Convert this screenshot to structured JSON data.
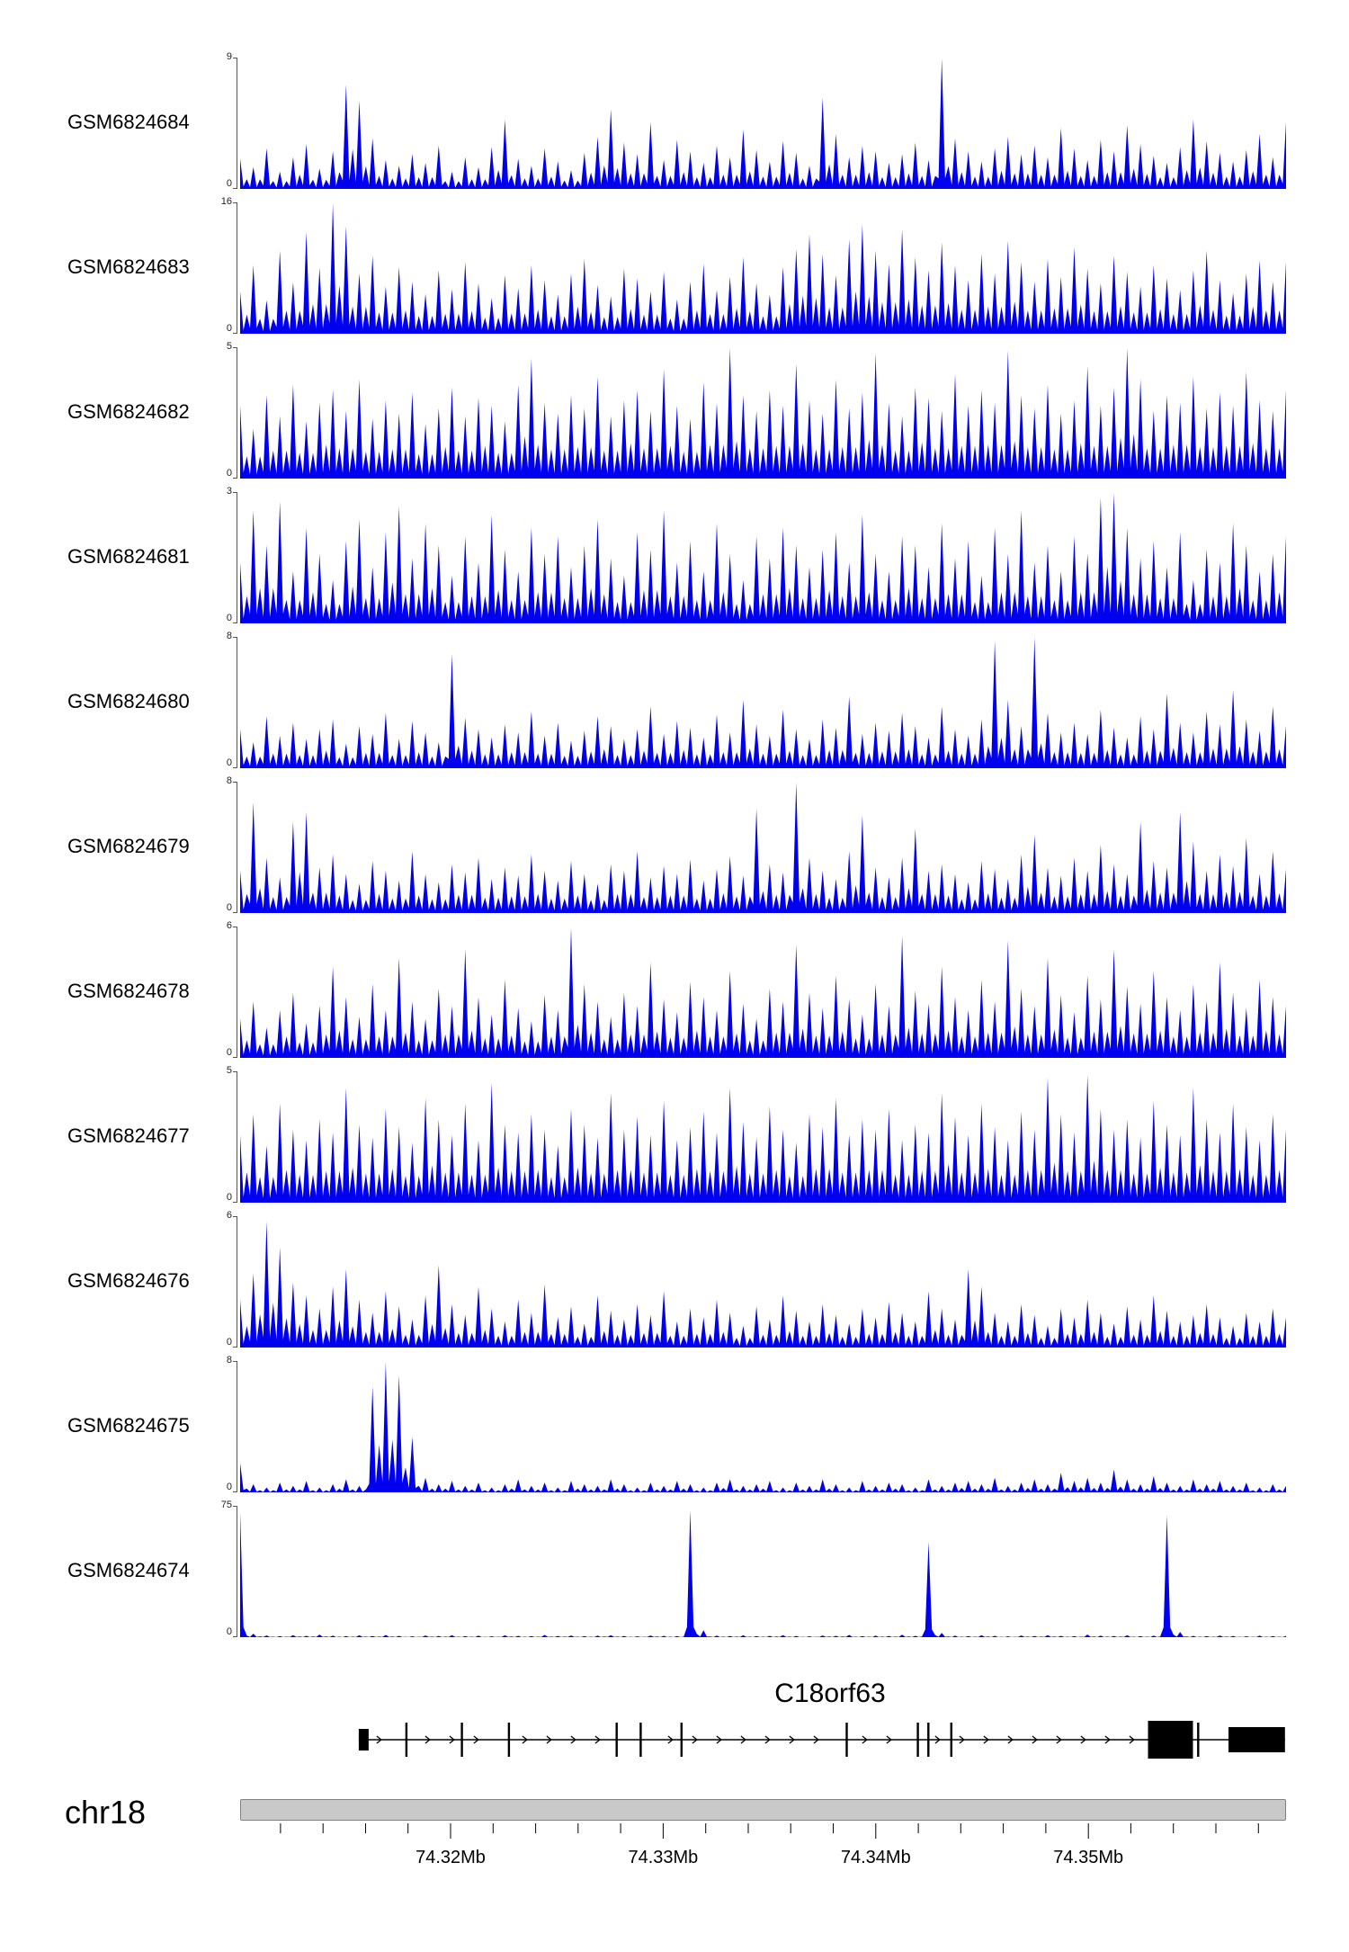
{
  "figure": {
    "background": "#ffffff",
    "signal_color": "#0000EE",
    "gene_color": "#000000",
    "ideogram_fill": "#c9c9c9",
    "ideogram_border": "#808080",
    "zero_label": "0"
  },
  "chart_data": {
    "type": "area",
    "title": "",
    "xlabel": "",
    "ylabel": "",
    "tracks": [
      {
        "name": "GSM6824684",
        "ymax": 9,
        "values": [
          2.1,
          1.5,
          2.8,
          1.2,
          2.2,
          3.1,
          1.4,
          2.6,
          7.2,
          6.1,
          3.5,
          2.0,
          1.6,
          2.4,
          1.8,
          3.0,
          1.2,
          2.2,
          1.5,
          2.9,
          4.8,
          2.1,
          1.6,
          2.8,
          1.9,
          1.3,
          2.5,
          3.6,
          5.5,
          3.2,
          2.4,
          4.6,
          2.0,
          3.4,
          2.6,
          1.8,
          3.0,
          2.2,
          4.1,
          2.7,
          1.9,
          3.3,
          2.5,
          1.6,
          6.3,
          3.8,
          2.2,
          3.0,
          2.6,
          1.8,
          2.4,
          3.2,
          2.0,
          9.0,
          3.5,
          2.6,
          1.9,
          2.8,
          3.6,
          2.4,
          3.0,
          2.2,
          4.2,
          2.8,
          2.0,
          3.4,
          2.6,
          4.4,
          3.1,
          2.3,
          1.8,
          2.9,
          4.8,
          3.3,
          2.5,
          1.9,
          2.7,
          3.8,
          2.2,
          4.6
        ]
      },
      {
        "name": "GSM6824683",
        "ymax": 16,
        "values": [
          5.2,
          8.4,
          4.1,
          10.2,
          6.3,
          12.5,
          8.1,
          16.0,
          13.2,
          7.4,
          9.6,
          5.8,
          8.2,
          6.4,
          4.9,
          7.8,
          5.5,
          8.8,
          6.2,
          4.4,
          7.2,
          5.6,
          8.4,
          6.6,
          4.8,
          7.4,
          9.2,
          6.0,
          4.6,
          8.0,
          6.8,
          5.2,
          7.6,
          4.2,
          6.4,
          8.6,
          5.4,
          7.0,
          9.4,
          6.2,
          4.8,
          8.2,
          10.4,
          12.2,
          9.8,
          7.2,
          11.6,
          13.4,
          10.2,
          8.6,
          12.8,
          9.4,
          7.8,
          11.2,
          8.4,
          6.6,
          9.8,
          7.4,
          11.4,
          8.8,
          6.4,
          9.2,
          7.0,
          10.6,
          8.0,
          6.2,
          9.6,
          7.6,
          5.8,
          8.4,
          6.8,
          5.4,
          7.8,
          10.2,
          6.6,
          5.0,
          7.4,
          9.0,
          6.4,
          8.8
        ]
      },
      {
        "name": "GSM6824682",
        "ymax": 5,
        "values": [
          2.8,
          1.9,
          3.2,
          2.4,
          3.6,
          2.2,
          2.9,
          3.4,
          2.6,
          3.8,
          2.3,
          3.0,
          2.5,
          3.3,
          2.1,
          2.7,
          3.5,
          2.4,
          3.1,
          2.8,
          2.2,
          3.6,
          4.6,
          2.9,
          2.5,
          3.2,
          2.7,
          3.9,
          2.4,
          3.0,
          3.4,
          2.6,
          4.2,
          2.8,
          2.3,
          3.7,
          2.9,
          5.0,
          3.2,
          2.6,
          3.4,
          2.8,
          4.4,
          3.0,
          2.5,
          3.8,
          2.7,
          3.3,
          4.8,
          2.9,
          2.4,
          3.5,
          3.1,
          2.6,
          4.0,
          2.8,
          3.4,
          2.9,
          4.9,
          3.2,
          2.7,
          3.6,
          2.5,
          3.0,
          4.3,
          2.8,
          3.5,
          5.0,
          3.8,
          2.6,
          3.2,
          2.9,
          3.9,
          2.7,
          3.3,
          2.8,
          4.1,
          3.0,
          2.6,
          3.4
        ]
      },
      {
        "name": "GSM6824681",
        "ymax": 3,
        "values": [
          1.4,
          2.6,
          1.8,
          2.8,
          1.2,
          2.2,
          1.6,
          1.0,
          1.9,
          2.4,
          1.3,
          2.1,
          2.7,
          1.5,
          2.3,
          1.8,
          1.1,
          2.0,
          1.4,
          2.5,
          1.7,
          1.2,
          2.2,
          1.6,
          2.0,
          1.3,
          1.8,
          2.4,
          1.5,
          1.1,
          2.1,
          1.7,
          2.6,
          1.4,
          1.9,
          1.2,
          2.3,
          1.6,
          1.0,
          2.0,
          1.5,
          2.2,
          1.8,
          1.3,
          1.7,
          2.1,
          1.4,
          2.5,
          1.6,
          1.2,
          2.0,
          1.8,
          1.3,
          2.3,
          1.5,
          1.9,
          1.1,
          2.2,
          1.6,
          2.6,
          1.4,
          1.8,
          1.2,
          2.0,
          1.6,
          2.9,
          3.0,
          2.2,
          1.5,
          1.9,
          1.3,
          2.1,
          1.0,
          1.7,
          1.4,
          2.3,
          1.8,
          1.2,
          1.6,
          2.0
        ]
      },
      {
        "name": "GSM6824680",
        "ymax": 8,
        "values": [
          2.4,
          1.6,
          3.2,
          2.0,
          2.8,
          1.8,
          2.4,
          3.0,
          1.5,
          2.6,
          2.1,
          3.4,
          1.8,
          2.9,
          2.2,
          1.6,
          7.0,
          3.1,
          2.4,
          1.9,
          2.7,
          2.2,
          3.5,
          2.0,
          2.8,
          1.7,
          2.3,
          3.2,
          2.6,
          1.8,
          2.4,
          3.8,
          2.1,
          2.9,
          2.5,
          1.9,
          3.3,
          2.2,
          4.2,
          2.7,
          2.0,
          3.6,
          2.4,
          1.8,
          3.0,
          2.5,
          4.4,
          2.1,
          2.8,
          2.3,
          3.4,
          2.6,
          1.9,
          3.8,
          2.4,
          2.0,
          3.0,
          7.8,
          4.2,
          2.6,
          8.0,
          3.4,
          2.2,
          2.8,
          2.1,
          3.6,
          2.5,
          1.9,
          3.2,
          2.4,
          4.6,
          2.8,
          2.2,
          3.5,
          2.7,
          4.8,
          3.0,
          2.3,
          3.8,
          2.6
        ]
      },
      {
        "name": "GSM6824679",
        "ymax": 8,
        "values": [
          2.6,
          6.8,
          3.4,
          2.2,
          5.6,
          6.2,
          2.8,
          3.6,
          2.4,
          1.8,
          3.2,
          2.6,
          2.0,
          3.8,
          2.4,
          1.9,
          3.0,
          2.5,
          3.4,
          2.1,
          2.8,
          2.3,
          3.6,
          2.6,
          2.0,
          3.2,
          2.4,
          1.8,
          3.0,
          2.6,
          3.8,
          2.2,
          2.9,
          2.4,
          3.3,
          2.0,
          2.7,
          3.5,
          2.3,
          6.4,
          3.0,
          2.5,
          8.0,
          3.4,
          2.6,
          2.1,
          3.8,
          6.0,
          2.8,
          2.2,
          3.4,
          5.2,
          2.6,
          3.0,
          2.4,
          1.9,
          3.2,
          2.7,
          2.1,
          3.6,
          4.8,
          2.8,
          2.3,
          3.4,
          2.6,
          4.2,
          3.0,
          2.4,
          5.6,
          3.2,
          2.8,
          6.2,
          4.4,
          2.6,
          3.6,
          2.9,
          4.6,
          2.4,
          3.8,
          2.7
        ]
      },
      {
        "name": "GSM6824678",
        "ymax": 6,
        "values": [
          1.8,
          2.6,
          1.4,
          2.2,
          3.0,
          1.6,
          2.4,
          4.2,
          2.8,
          1.9,
          3.4,
          2.2,
          4.6,
          2.6,
          1.8,
          3.2,
          2.4,
          5.0,
          2.8,
          2.0,
          3.6,
          2.3,
          1.7,
          2.9,
          2.2,
          6.0,
          3.4,
          2.6,
          1.9,
          3.0,
          2.4,
          4.4,
          2.7,
          2.1,
          3.5,
          2.8,
          2.2,
          4.0,
          2.5,
          1.8,
          3.2,
          2.6,
          5.2,
          3.0,
          2.3,
          3.8,
          2.7,
          2.0,
          3.4,
          2.4,
          5.6,
          3.1,
          2.5,
          4.2,
          2.8,
          2.2,
          3.6,
          2.6,
          5.4,
          3.2,
          2.4,
          4.6,
          2.9,
          2.1,
          3.8,
          2.7,
          5.0,
          3.3,
          2.5,
          4.0,
          2.8,
          2.2,
          3.4,
          2.6,
          4.4,
          3.0,
          2.3,
          3.6,
          2.8,
          2.4
        ]
      },
      {
        "name": "GSM6824677",
        "ymax": 5,
        "values": [
          2.6,
          3.4,
          2.2,
          3.8,
          2.8,
          2.4,
          3.2,
          2.7,
          4.4,
          3.0,
          2.5,
          3.6,
          2.9,
          2.3,
          4.0,
          3.2,
          2.6,
          3.8,
          2.4,
          4.6,
          3.0,
          2.7,
          3.4,
          2.8,
          2.2,
          3.6,
          3.0,
          2.5,
          4.2,
          2.8,
          3.3,
          2.6,
          3.9,
          2.4,
          2.9,
          3.5,
          2.7,
          4.4,
          3.1,
          2.5,
          3.7,
          2.8,
          2.3,
          3.4,
          2.9,
          4.0,
          2.6,
          3.2,
          2.8,
          3.6,
          2.4,
          3.0,
          2.7,
          4.2,
          3.3,
          2.6,
          3.8,
          2.9,
          2.4,
          3.5,
          2.8,
          4.8,
          3.4,
          2.7,
          4.9,
          3.6,
          2.8,
          3.2,
          2.5,
          3.9,
          3.0,
          2.6,
          4.4,
          3.2,
          2.7,
          3.8,
          2.9,
          2.4,
          3.4,
          2.8
        ]
      },
      {
        "name": "GSM6824676",
        "ymax": 6,
        "values": [
          2.2,
          3.4,
          5.8,
          4.6,
          3.0,
          2.4,
          1.8,
          2.8,
          3.6,
          2.2,
          1.6,
          2.6,
          1.9,
          1.3,
          2.4,
          3.8,
          2.0,
          1.5,
          2.8,
          1.8,
          1.2,
          2.2,
          1.6,
          2.9,
          1.4,
          1.9,
          1.1,
          2.4,
          1.7,
          1.3,
          2.0,
          1.5,
          2.6,
          1.2,
          1.8,
          1.4,
          2.2,
          1.6,
          1.0,
          1.9,
          1.3,
          2.4,
          1.7,
          1.2,
          2.0,
          1.5,
          1.1,
          1.8,
          1.4,
          2.1,
          1.6,
          1.2,
          2.6,
          1.8,
          1.3,
          3.6,
          2.8,
          1.6,
          1.2,
          2.0,
          1.5,
          1.0,
          1.8,
          1.4,
          2.2,
          1.6,
          1.1,
          1.9,
          1.3,
          2.4,
          1.7,
          1.2,
          1.5,
          2.0,
          1.4,
          1.0,
          1.6,
          1.2,
          1.8,
          1.4
        ]
      },
      {
        "name": "GSM6824675",
        "ymax": 8,
        "values": [
          1.8,
          0.5,
          0.3,
          0.6,
          0.4,
          0.7,
          0.3,
          0.5,
          0.8,
          0.4,
          6.5,
          8.0,
          7.2,
          3.4,
          0.9,
          0.5,
          0.7,
          0.4,
          0.6,
          0.3,
          0.5,
          0.8,
          0.4,
          0.6,
          0.3,
          0.7,
          0.5,
          0.4,
          0.8,
          0.5,
          0.3,
          0.6,
          0.4,
          0.7,
          0.5,
          0.3,
          0.6,
          0.8,
          0.4,
          0.5,
          0.7,
          0.3,
          0.6,
          0.4,
          0.8,
          0.5,
          0.3,
          0.7,
          0.4,
          0.6,
          0.5,
          0.3,
          0.8,
          0.4,
          0.6,
          0.7,
          0.5,
          0.9,
          0.4,
          0.6,
          0.8,
          0.5,
          1.2,
          0.7,
          0.9,
          0.6,
          1.4,
          0.8,
          0.5,
          1.0,
          0.6,
          0.4,
          0.8,
          0.5,
          0.7,
          0.4,
          0.6,
          0.3,
          0.5,
          0.4
        ]
      },
      {
        "name": "GSM6824674",
        "ymax": 75,
        "values": [
          72,
          2.0,
          1.0,
          0.6,
          1.2,
          0.8,
          1.5,
          0.9,
          0.6,
          1.1,
          0.7,
          1.3,
          0.8,
          0.5,
          1.0,
          0.7,
          1.2,
          0.6,
          0.9,
          0.5,
          1.1,
          0.8,
          0.6,
          1.3,
          0.7,
          1.0,
          0.6,
          0.9,
          1.2,
          0.7,
          0.5,
          1.0,
          0.8,
          0.6,
          73,
          4.0,
          0.9,
          0.7,
          1.1,
          0.6,
          0.8,
          1.2,
          0.7,
          0.5,
          1.0,
          0.8,
          1.3,
          0.6,
          0.9,
          0.7,
          1.4,
          0.8,
          55,
          2.5,
          0.9,
          0.6,
          1.1,
          0.8,
          0.5,
          1.0,
          0.7,
          1.2,
          0.8,
          0.6,
          1.5,
          0.9,
          0.7,
          1.1,
          0.6,
          0.9,
          70,
          3.0,
          0.8,
          0.6,
          1.0,
          0.7,
          0.5,
          0.9,
          0.6,
          0.8
        ]
      }
    ],
    "gene": {
      "name": "C18orf63",
      "strand": "+",
      "title_x_frac": 0.564,
      "line_span": [
        0.1134,
        0.999
      ],
      "start_exon": [
        0.1134,
        0.1229
      ],
      "exon_ticks": [
        0.159,
        0.212,
        0.257,
        0.36,
        0.383,
        0.422,
        0.58,
        0.648,
        0.658,
        0.68,
        0.916
      ],
      "wide_exons": [
        [
          0.868,
          0.911
        ],
        [
          0.945,
          0.999
        ]
      ]
    },
    "axis": {
      "chromosome": "chr18",
      "mb_start": 74.3101,
      "mb_end": 74.3593,
      "minor_step_mb": 0.002,
      "majors": [
        {
          "mb": 74.32,
          "label": "74.32Mb"
        },
        {
          "mb": 74.33,
          "label": "74.33Mb"
        },
        {
          "mb": 74.34,
          "label": "74.34Mb"
        },
        {
          "mb": 74.35,
          "label": "74.35Mb"
        }
      ]
    }
  }
}
